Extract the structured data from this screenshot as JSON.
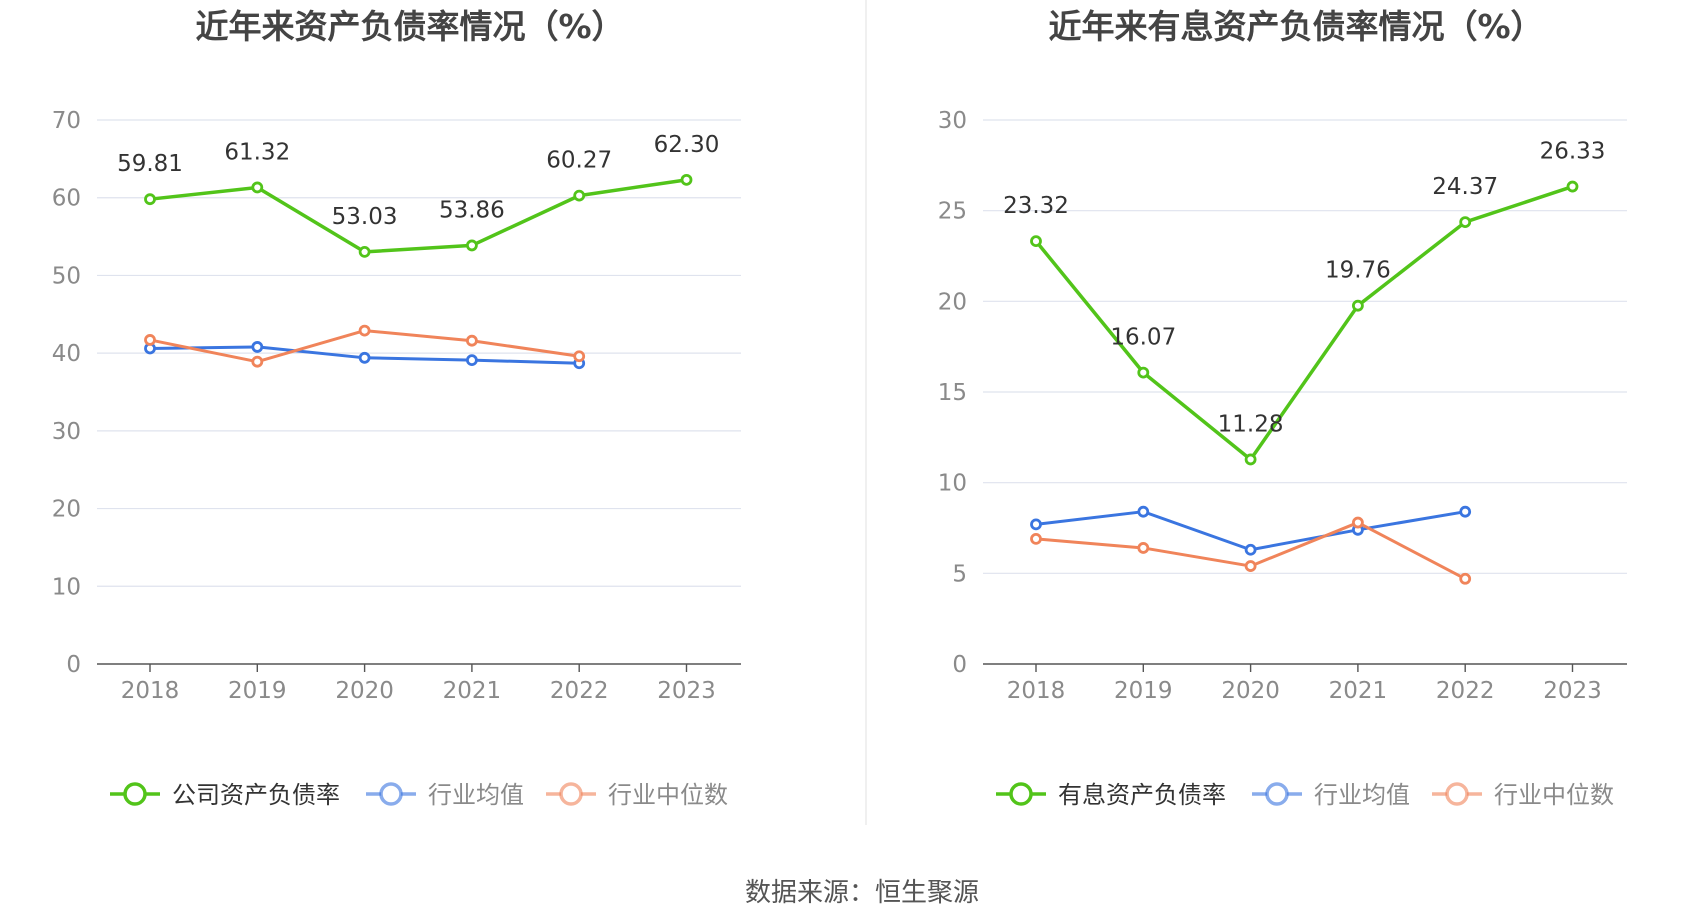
{
  "source": "数据来源：恒生聚源",
  "chart_data": [
    {
      "type": "line",
      "title": "近年来资产负债率情况（%）",
      "categories": [
        "2018",
        "2019",
        "2020",
        "2021",
        "2022",
        "2023"
      ],
      "ylim": [
        0,
        70
      ],
      "yticks": [
        0,
        10,
        20,
        30,
        40,
        50,
        60,
        70
      ],
      "grid": true,
      "legend_position": "bottom",
      "series": [
        {
          "name": "公司资产负债率",
          "color": "#52c41a",
          "values": [
            59.81,
            61.32,
            53.03,
            53.86,
            60.27,
            62.3
          ],
          "labels": [
            "59.81",
            "61.32",
            "53.03",
            "53.86",
            "60.27",
            "62.30"
          ]
        },
        {
          "name": "行业均值",
          "color": "#3a75e0",
          "values": [
            40.6,
            40.8,
            39.4,
            39.1,
            38.7,
            null
          ]
        },
        {
          "name": "行业中位数",
          "color": "#f0845a",
          "values": [
            41.7,
            38.9,
            42.9,
            41.6,
            39.6,
            null
          ]
        }
      ]
    },
    {
      "type": "line",
      "title": "近年来有息资产负债率情况（%）",
      "categories": [
        "2018",
        "2019",
        "2020",
        "2021",
        "2022",
        "2023"
      ],
      "ylim": [
        0,
        30
      ],
      "yticks": [
        0,
        5,
        10,
        15,
        20,
        25,
        30
      ],
      "grid": true,
      "legend_position": "bottom",
      "series": [
        {
          "name": "有息资产负债率",
          "color": "#52c41a",
          "values": [
            23.32,
            16.07,
            11.28,
            19.76,
            24.37,
            26.33
          ],
          "labels": [
            "23.32",
            "16.07",
            "11.28",
            "19.76",
            "24.37",
            "26.33"
          ]
        },
        {
          "name": "行业均值",
          "color": "#3a75e0",
          "values": [
            7.7,
            8.4,
            6.3,
            7.4,
            8.4,
            null
          ]
        },
        {
          "name": "行业中位数",
          "color": "#f0845a",
          "values": [
            6.9,
            6.4,
            5.4,
            7.8,
            4.7,
            null
          ]
        }
      ]
    }
  ]
}
